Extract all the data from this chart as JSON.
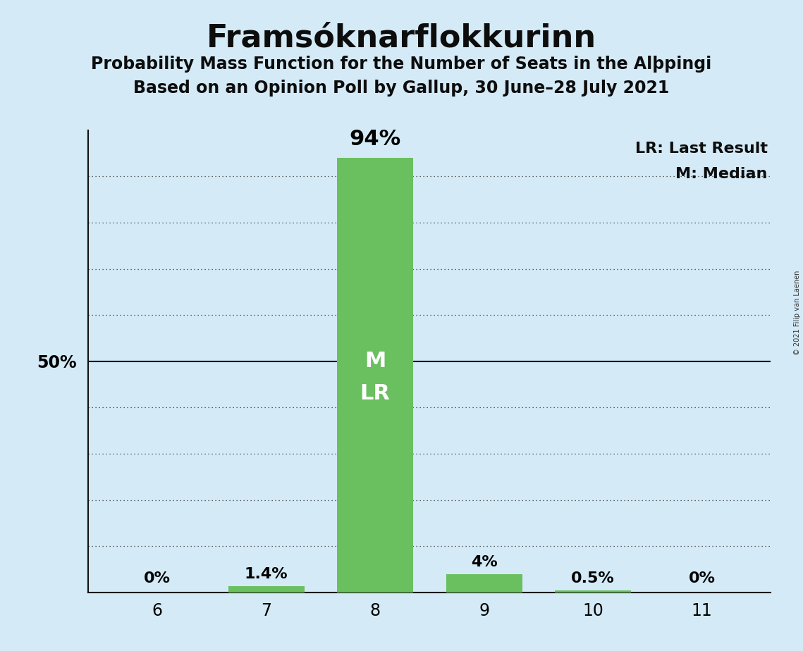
{
  "title": "Framsóknarflokkurinn",
  "subtitle1": "Probability Mass Function for the Number of Seats in the Alþpingi",
  "subtitle2": "Based on an Opinion Poll by Gallup, 30 June–28 July 2021",
  "seats": [
    6,
    7,
    8,
    9,
    10,
    11
  ],
  "values": [
    0.0,
    1.4,
    94.0,
    4.0,
    0.5,
    0.0
  ],
  "bar_color": "#6abf5e",
  "bar_labels": [
    "0%",
    "1.4%",
    "94%",
    "4%",
    "0.5%",
    "0%"
  ],
  "median_seat": 8,
  "last_result_seat": 8,
  "background_color": "#d4eaf7",
  "ylabel_50": "50%",
  "ylim_max": 100,
  "ytick_dotted": [
    10,
    20,
    30,
    40,
    60,
    70,
    80,
    90
  ],
  "ytick_solid": [
    50
  ],
  "legend_lr": "LR: Last Result",
  "legend_m": "M: Median",
  "copyright_text": "© 2021 Filip van Laenen",
  "bar_width": 0.7,
  "title_fontsize": 32,
  "subtitle_fontsize": 17,
  "tick_fontsize": 17,
  "label_fontsize_small": 16,
  "label_fontsize_large": 22,
  "inner_label_fontsize": 22
}
